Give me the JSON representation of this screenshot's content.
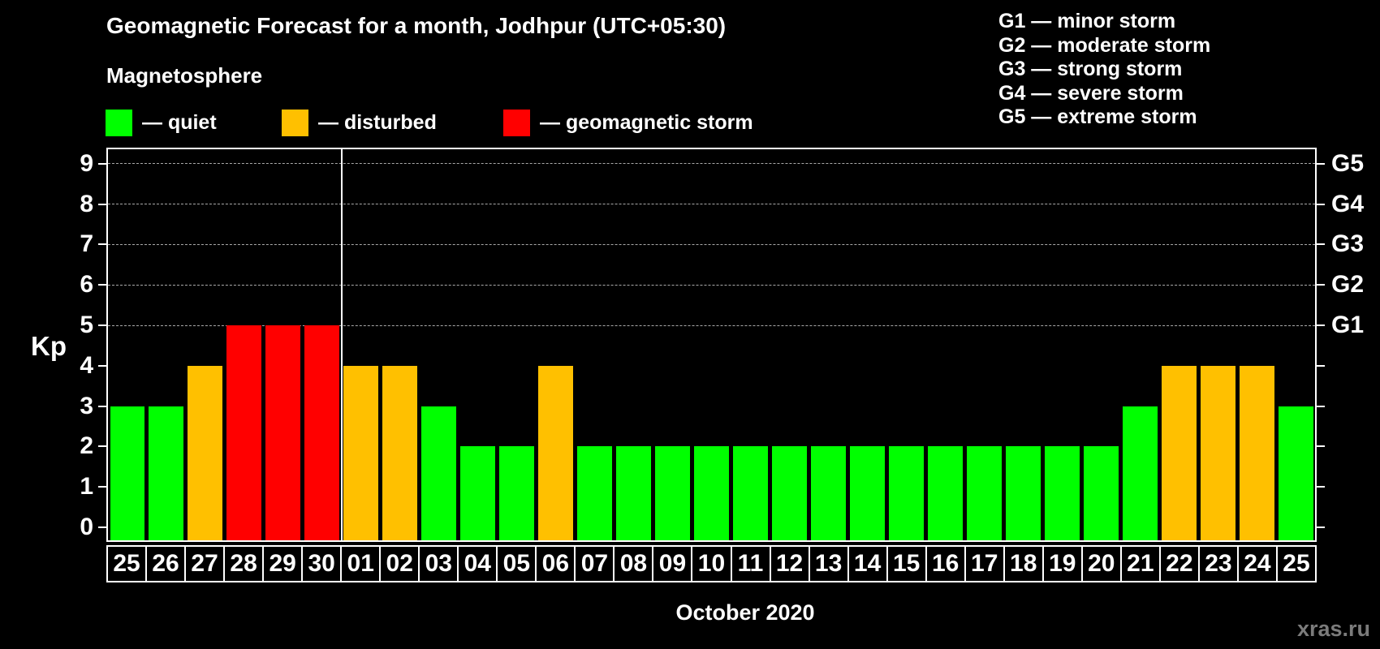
{
  "header": {
    "title": "Geomagnetic Forecast for a month, Jodhpur (UTC+05:30)",
    "subtitle": "Magnetosphere"
  },
  "legend": {
    "items": [
      {
        "key": "quiet",
        "label": "— quiet"
      },
      {
        "key": "disturbed",
        "label": "— disturbed"
      },
      {
        "key": "storm",
        "label": "— geomagnetic storm"
      }
    ]
  },
  "g_legend": [
    "G1 — minor storm",
    "G2 — moderate storm",
    "G3 — strong storm",
    "G4 — severe storm",
    "G5 — extreme storm"
  ],
  "axes": {
    "y_title": "Kp",
    "x_title": "October 2020"
  },
  "watermark": "xras.ru",
  "chart_data": {
    "type": "bar",
    "title": "Geomagnetic Forecast for a month, Jodhpur (UTC+05:30)",
    "subtitle": "Magnetosphere",
    "ylabel": "Kp",
    "xlabel": "October 2020",
    "ylim": [
      0,
      9
    ],
    "y_ticks": [
      0,
      1,
      2,
      3,
      4,
      5,
      6,
      7,
      8,
      9
    ],
    "gridline_levels": [
      5,
      6,
      7,
      8,
      9
    ],
    "grid": "dashed, only at Kp 5-9",
    "legend_position": "top",
    "right_axis_labels": [
      {
        "label": "G1",
        "level": 5
      },
      {
        "label": "G2",
        "level": 6
      },
      {
        "label": "G3",
        "level": 7
      },
      {
        "label": "G4",
        "level": 8
      },
      {
        "label": "G5",
        "level": 9
      }
    ],
    "bars": [
      {
        "day": "25",
        "kp": 3
      },
      {
        "day": "26",
        "kp": 3
      },
      {
        "day": "27",
        "kp": 4
      },
      {
        "day": "28",
        "kp": 5
      },
      {
        "day": "29",
        "kp": 5
      },
      {
        "day": "30",
        "kp": 5
      },
      {
        "day": "01",
        "kp": 4
      },
      {
        "day": "02",
        "kp": 4
      },
      {
        "day": "03",
        "kp": 3
      },
      {
        "day": "04",
        "kp": 2
      },
      {
        "day": "05",
        "kp": 2
      },
      {
        "day": "06",
        "kp": 4
      },
      {
        "day": "07",
        "kp": 2
      },
      {
        "day": "08",
        "kp": 2
      },
      {
        "day": "09",
        "kp": 2
      },
      {
        "day": "10",
        "kp": 2
      },
      {
        "day": "11",
        "kp": 2
      },
      {
        "day": "12",
        "kp": 2
      },
      {
        "day": "13",
        "kp": 2
      },
      {
        "day": "14",
        "kp": 2
      },
      {
        "day": "15",
        "kp": 2
      },
      {
        "day": "16",
        "kp": 2
      },
      {
        "day": "17",
        "kp": 2
      },
      {
        "day": "18",
        "kp": 2
      },
      {
        "day": "19",
        "kp": 2
      },
      {
        "day": "20",
        "kp": 2
      },
      {
        "day": "21",
        "kp": 3
      },
      {
        "day": "22",
        "kp": 4
      },
      {
        "day": "23",
        "kp": 4
      },
      {
        "day": "24",
        "kp": 4
      },
      {
        "day": "25",
        "kp": 3
      }
    ],
    "month_divider_after_bar": 6,
    "color_rules": {
      "storm_min_kp": 5,
      "disturbed_min_kp": 4
    },
    "palette": {
      "quiet": "#00ff00",
      "disturbed": "#ffc000",
      "storm": "#ff0000"
    }
  }
}
